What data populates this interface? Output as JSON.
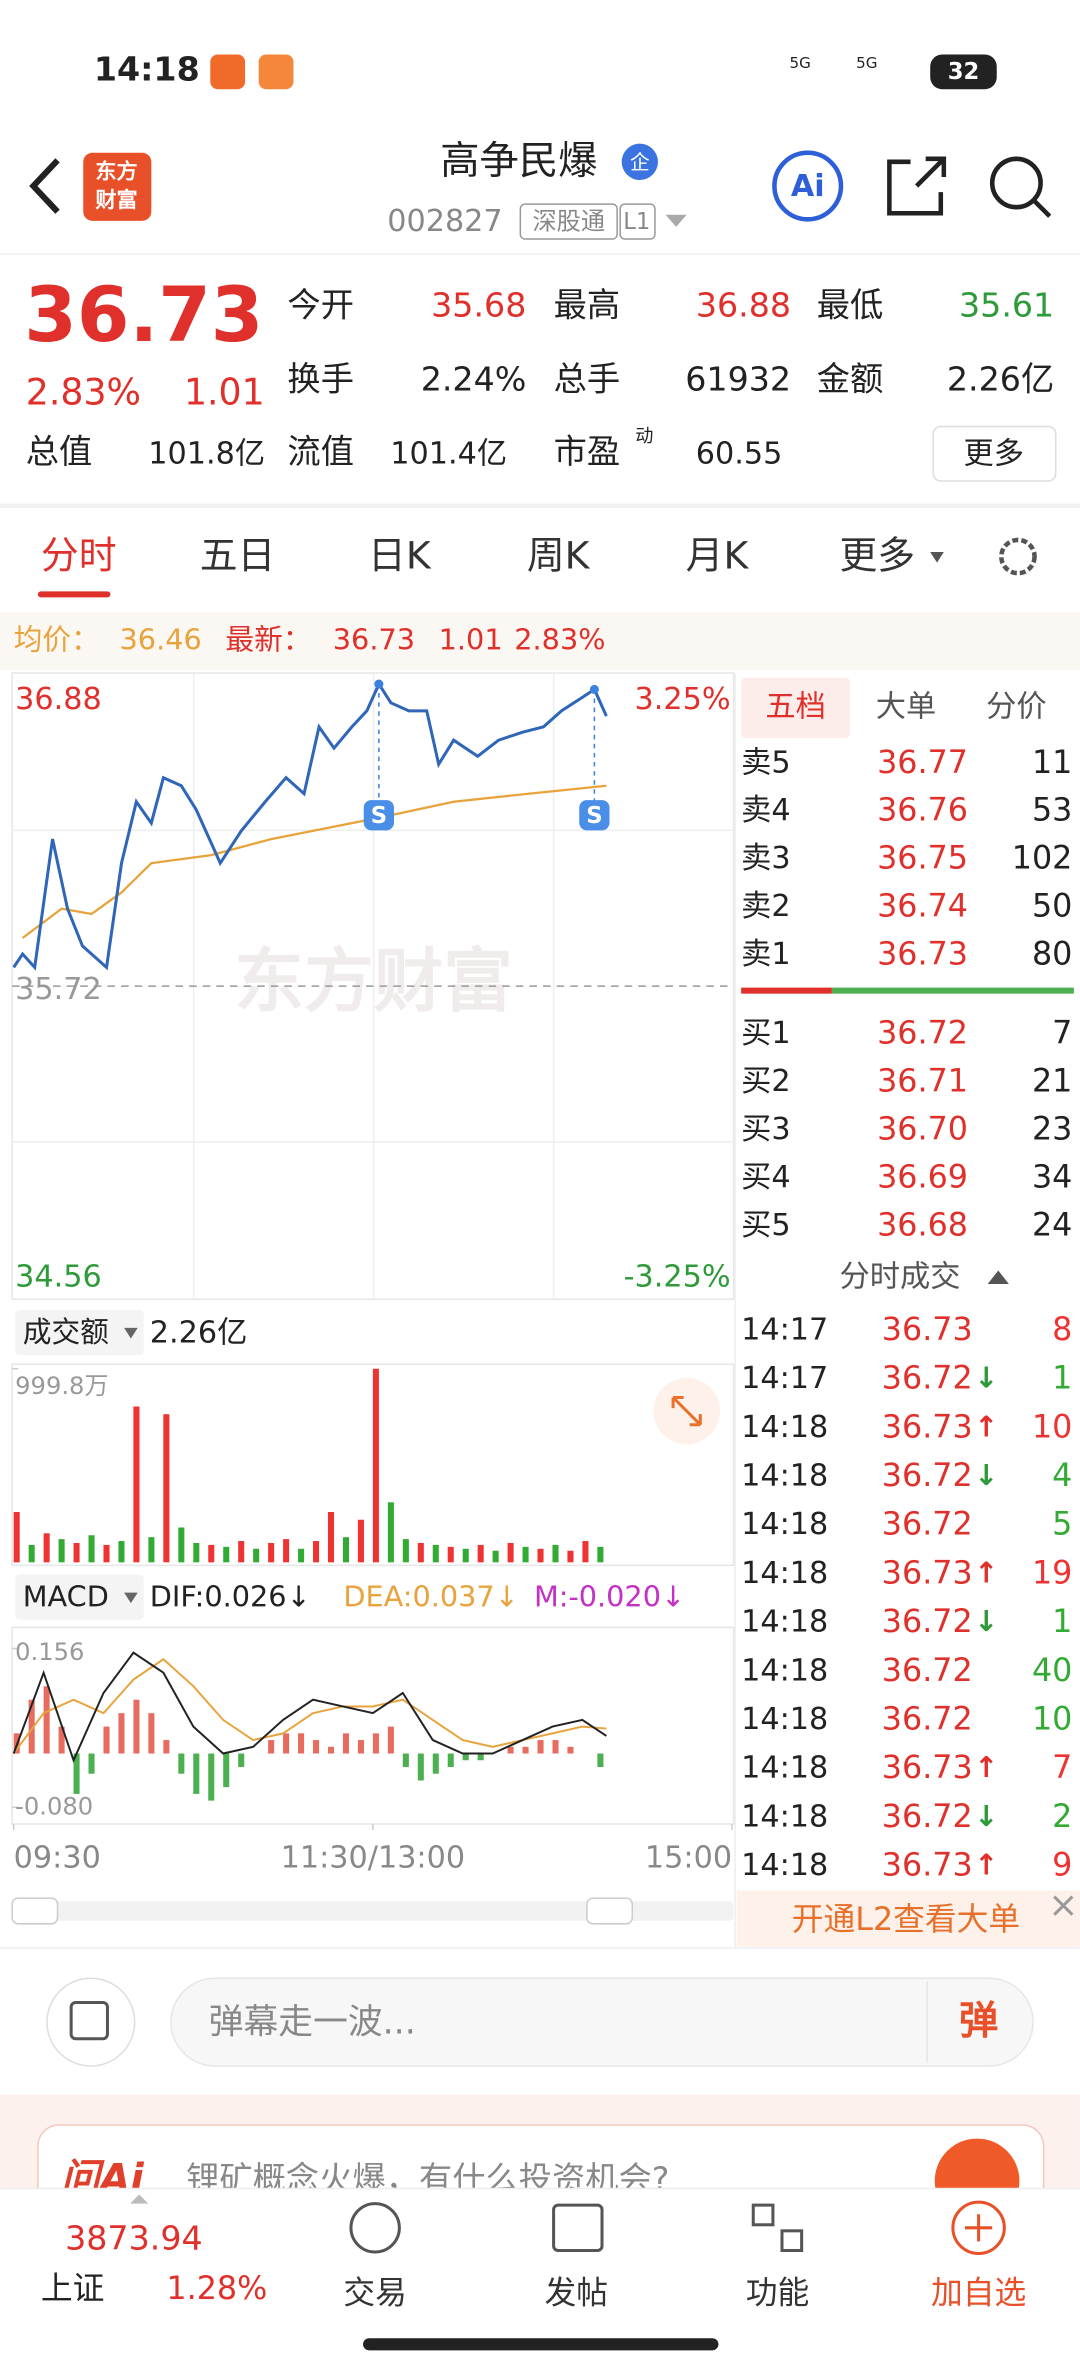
{
  "status_bar": {
    "time": "14:18",
    "battery": "32",
    "network": [
      "5G",
      "5G"
    ]
  },
  "header": {
    "logo": [
      "东方",
      "财富"
    ],
    "title": "高争民爆",
    "badge": "企",
    "code": "002827",
    "tags": [
      "深股通",
      "L1"
    ],
    "ai": "Ai"
  },
  "quote": {
    "price": "36.73",
    "change_pct": "2.83%",
    "change": "1.01",
    "fields": [
      {
        "label": "今开",
        "value": "35.68"
      },
      {
        "label": "最高",
        "value": "36.88"
      },
      {
        "label": "最低",
        "value": "35.61"
      },
      {
        "label": "换手",
        "value": "2.24%"
      },
      {
        "label": "总手",
        "value": "61932"
      },
      {
        "label": "金额",
        "value": "2.26亿"
      },
      {
        "label": "总值",
        "value": "101.8亿"
      },
      {
        "label": "流值",
        "value": "101.4亿"
      },
      {
        "label": "市盈",
        "value": "60.55",
        "note": "动"
      }
    ],
    "more": "更多"
  },
  "tabs": [
    "分时",
    "五日",
    "日K",
    "周K",
    "月K",
    "更多"
  ],
  "summary": {
    "avg_label": "均价：",
    "avg": "36.46",
    "last_label": "最新：",
    "last": "36.73",
    "change": "1.01",
    "change_pct": "2.83%"
  },
  "intraday": {
    "watermark": "东方财富",
    "xlim": [
      0,
      240
    ],
    "xticks": [
      {
        "value": 0,
        "label": "09:30"
      },
      {
        "value": 120,
        "label": "11:30/13:00"
      },
      {
        "value": 240,
        "label": "15:00"
      }
    ],
    "ylim": [
      34.56,
      36.88
    ],
    "yticks": [
      34.56,
      35.72,
      36.88
    ],
    "pct_labels": [
      "3.25%",
      "-3.25%"
    ],
    "price": {
      "color": "#2f66b8",
      "x": [
        0,
        3,
        7,
        13,
        18,
        23,
        31,
        36,
        41,
        46,
        50,
        56,
        61,
        69,
        76,
        84,
        91,
        97,
        102,
        107,
        113,
        118,
        122,
        126,
        132,
        138,
        142,
        147,
        155,
        162,
        170,
        177,
        183,
        190,
        194,
        198
      ],
      "values": [
        35.79,
        35.84,
        35.79,
        36.27,
        36.01,
        35.87,
        35.79,
        36.18,
        36.41,
        36.33,
        36.5,
        36.47,
        36.38,
        36.18,
        36.3,
        36.41,
        36.5,
        36.44,
        36.69,
        36.61,
        36.69,
        36.75,
        36.85,
        36.78,
        36.75,
        36.75,
        36.55,
        36.64,
        36.58,
        36.64,
        36.67,
        36.69,
        36.75,
        36.8,
        36.83,
        36.73
      ]
    },
    "avg": {
      "color": "#e8a33c",
      "x": [
        3,
        16,
        26,
        36,
        46,
        66,
        86,
        122,
        147,
        172,
        198
      ],
      "values": [
        35.9,
        36.01,
        35.99,
        36.07,
        36.18,
        36.21,
        36.27,
        36.35,
        36.41,
        36.44,
        36.47
      ]
    },
    "markers": [
      {
        "label": "S",
        "x": 122,
        "y": 36.85
      },
      {
        "label": "S",
        "x": 194,
        "y": 36.83
      }
    ]
  },
  "volume": {
    "selector": "成交额",
    "total": "2.26亿",
    "ylim": [
      0,
      999.8
    ],
    "yticks": [
      {
        "value": 999.8,
        "label": "999.8万"
      }
    ],
    "x": [
      0,
      5,
      10,
      15,
      20,
      25,
      30,
      35,
      40,
      45,
      50,
      55,
      60,
      65,
      70,
      75,
      80,
      85,
      90,
      95,
      100,
      105,
      110,
      115,
      120,
      125,
      130,
      135,
      140,
      145,
      150,
      155,
      160,
      165,
      170,
      175,
      180,
      185,
      190,
      195
    ],
    "values": [
      260,
      90,
      150,
      120,
      100,
      140,
      90,
      110,
      805,
      130,
      765,
      180,
      100,
      90,
      80,
      110,
      70,
      100,
      120,
      70,
      110,
      260,
      130,
      220,
      999.8,
      310,
      120,
      100,
      90,
      80,
      70,
      90,
      60,
      100,
      80,
      70,
      90,
      60,
      110,
      80
    ],
    "colors": [
      "#e33",
      "#3a3",
      "#e33",
      "#3a3",
      "#e33",
      "#3a3",
      "#e33",
      "#3a3",
      "#e33",
      "#3a3",
      "#e33",
      "#3a3",
      "#3a3",
      "#e33",
      "#3a3",
      "#e33",
      "#3a3",
      "#e33",
      "#e33",
      "#3a3",
      "#e33",
      "#e33",
      "#3a3",
      "#e33",
      "#e33",
      "#3a3",
      "#3a3",
      "#e33",
      "#3a3",
      "#e33",
      "#3a3",
      "#e33",
      "#3a3",
      "#e33",
      "#3a3",
      "#e33",
      "#3a3",
      "#e33",
      "#e33",
      "#3a3"
    ]
  },
  "macd": {
    "selector": "MACD",
    "dif_label": "DIF:0.026↓",
    "dea_label": "DEA:0.037↓",
    "m_label": "M:-0.020↓",
    "ylim": [
      -0.08,
      0.156
    ],
    "yticks": [
      {
        "value": -0.08,
        "label": "-0.080"
      },
      0.156
    ],
    "hist": {
      "x": [
        0,
        5,
        10,
        15,
        20,
        25,
        30,
        35,
        40,
        45,
        50,
        55,
        60,
        65,
        70,
        75,
        80,
        85,
        90,
        95,
        100,
        105,
        110,
        115,
        120,
        125,
        130,
        135,
        140,
        145,
        150,
        155,
        160,
        165,
        170,
        175,
        180,
        185,
        190,
        195
      ],
      "values": [
        0.03,
        0.08,
        0.1,
        0.04,
        -0.06,
        -0.03,
        0.04,
        0.06,
        0.08,
        0.06,
        0.02,
        -0.03,
        -0.06,
        -0.07,
        -0.05,
        -0.02,
        0,
        0.02,
        0.03,
        0.03,
        0.02,
        0.01,
        0.03,
        0.02,
        0.03,
        0.04,
        -0.02,
        -0.04,
        -0.03,
        -0.02,
        -0.01,
        -0.01,
        0,
        0.01,
        0.01,
        0.02,
        0.02,
        0.01,
        0,
        -0.02
      ]
    },
    "dif": {
      "color": "#222",
      "x": [
        0,
        10,
        20,
        30,
        40,
        50,
        60,
        70,
        80,
        90,
        100,
        110,
        120,
        130,
        140,
        150,
        160,
        170,
        180,
        190,
        198
      ],
      "values": [
        0,
        0.12,
        -0.01,
        0.09,
        0.15,
        0.12,
        0.04,
        0,
        0.01,
        0.05,
        0.08,
        0.07,
        0.06,
        0.09,
        0.02,
        0,
        0,
        0.02,
        0.04,
        0.05,
        0.026
      ]
    },
    "dea": {
      "color": "#e8a33c",
      "x": [
        0,
        10,
        20,
        30,
        40,
        50,
        60,
        70,
        80,
        90,
        100,
        110,
        120,
        130,
        140,
        150,
        160,
        170,
        180,
        190,
        198
      ],
      "values": [
        0,
        0.06,
        0.08,
        0.06,
        0.11,
        0.14,
        0.1,
        0.05,
        0.02,
        0.03,
        0.06,
        0.07,
        0.07,
        0.08,
        0.05,
        0.02,
        0.01,
        0.02,
        0.03,
        0.04,
        0.037
      ]
    }
  },
  "order_book": {
    "tabs": [
      "五档",
      "大单",
      "分价"
    ],
    "asks": [
      {
        "label": "卖5",
        "price": "36.77",
        "vol": "11"
      },
      {
        "label": "卖4",
        "price": "36.76",
        "vol": "53"
      },
      {
        "label": "卖3",
        "price": "36.75",
        "vol": "102"
      },
      {
        "label": "卖2",
        "price": "36.74",
        "vol": "50"
      },
      {
        "label": "卖1",
        "price": "36.73",
        "vol": "80"
      }
    ],
    "bids": [
      {
        "label": "买1",
        "price": "36.72",
        "vol": "7"
      },
      {
        "label": "买2",
        "price": "36.71",
        "vol": "21"
      },
      {
        "label": "买3",
        "price": "36.70",
        "vol": "23"
      },
      {
        "label": "买4",
        "price": "36.69",
        "vol": "34"
      },
      {
        "label": "买5",
        "price": "36.68",
        "vol": "24"
      }
    ]
  },
  "trades": {
    "title": "分时成交",
    "rows": [
      {
        "time": "14:17",
        "price": "36.73",
        "vol": "8",
        "vol_color": "#e33"
      },
      {
        "time": "14:17",
        "price": "36.72",
        "arrow": "↓",
        "vol": "1",
        "vol_color": "#3a3"
      },
      {
        "time": "14:18",
        "price": "36.73",
        "arrow": "↑",
        "vol": "10",
        "vol_color": "#e33"
      },
      {
        "time": "14:18",
        "price": "36.72",
        "arrow": "↓",
        "vol": "4",
        "vol_color": "#3a3"
      },
      {
        "time": "14:18",
        "price": "36.72",
        "vol": "5",
        "vol_color": "#3a3"
      },
      {
        "time": "14:18",
        "price": "36.73",
        "arrow": "↑",
        "vol": "19",
        "vol_color": "#e33"
      },
      {
        "time": "14:18",
        "price": "36.72",
        "arrow": "↓",
        "vol": "1",
        "vol_color": "#3a3"
      },
      {
        "time": "14:18",
        "price": "36.72",
        "vol": "40",
        "vol_color": "#3a3"
      },
      {
        "time": "14:18",
        "price": "36.72",
        "vol": "10",
        "vol_color": "#3a3"
      },
      {
        "time": "14:18",
        "price": "36.73",
        "arrow": "↑",
        "vol": "7",
        "vol_color": "#e33"
      },
      {
        "time": "14:18",
        "price": "36.72",
        "arrow": "↓",
        "vol": "2",
        "vol_color": "#3a3"
      },
      {
        "time": "14:18",
        "price": "36.73",
        "arrow": "↑",
        "vol": "9",
        "vol_color": "#e33"
      }
    ]
  },
  "l2_promo": "开通L2查看大单",
  "comment": {
    "placeholder": "弹幕走一波...",
    "button": "弹"
  },
  "banner": {
    "brand": "问Ai",
    "text": "锂矿概念火爆，有什么投资机会?"
  },
  "index": {
    "value": "3873.94",
    "name": "上证",
    "change_pct": "1.28%"
  },
  "nav": [
    "交易",
    "发帖",
    "功能",
    "加自选"
  ]
}
